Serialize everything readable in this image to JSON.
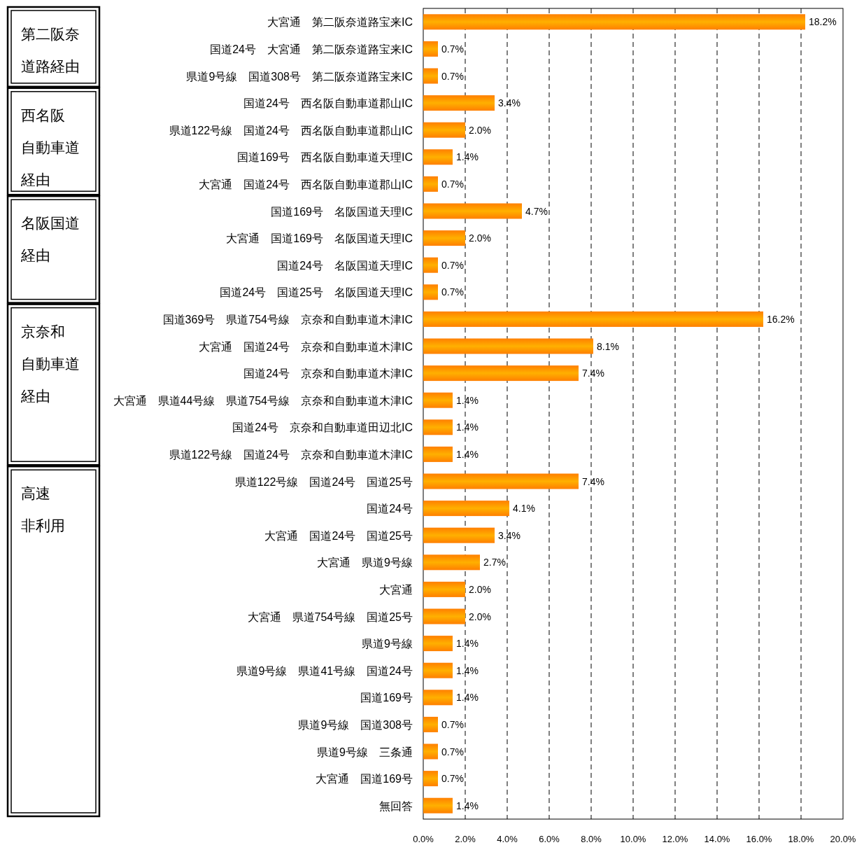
{
  "chart_data": {
    "type": "bar",
    "orientation": "horizontal",
    "color": "#ff7f00",
    "grid": "x",
    "categories": [
      "大宮通　第二阪奈道路宝来IC",
      "国道24号　大宮通　第二阪奈道路宝来IC",
      "県道9号線　国道308号　第二阪奈道路宝来IC",
      "国道24号　西名阪自動車道郡山IC",
      "県道122号線　国道24号　西名阪自動車道郡山IC",
      "国道169号　西名阪自動車道天理IC",
      "大宮通　国道24号　西名阪自動車道郡山IC",
      "国道169号　名阪国道天理IC",
      "大宮通　国道169号　名阪国道天理IC",
      "国道24号　名阪国道天理IC",
      "国道24号　国道25号　名阪国道天理IC",
      "国道369号　県道754号線　京奈和自動車道木津IC",
      "大宮通　国道24号　京奈和自動車道木津IC",
      "国道24号　京奈和自動車道木津IC",
      "大宮通　県道44号線　県道754号線　京奈和自動車道木津IC",
      "国道24号　京奈和自動車道田辺北IC",
      "県道122号線　国道24号　京奈和自動車道木津IC",
      "県道122号線　国道24号　国道25号",
      "国道24号",
      "大宮通　国道24号　国道25号",
      "大宮通　県道9号線",
      "大宮通",
      "大宮通　県道754号線　国道25号",
      "県道9号線",
      "県道9号線　県道41号線　国道24号",
      "国道169号",
      "県道9号線　国道308号",
      "県道9号線　三条通",
      "大宮通　国道169号",
      "無回答"
    ],
    "values": [
      18.2,
      0.7,
      0.7,
      3.4,
      2.0,
      1.4,
      0.7,
      4.7,
      2.0,
      0.7,
      0.7,
      16.2,
      8.1,
      7.4,
      1.4,
      1.4,
      1.4,
      7.4,
      4.1,
      3.4,
      2.7,
      2.0,
      2.0,
      1.4,
      1.4,
      1.4,
      0.7,
      0.7,
      0.7,
      1.4
    ],
    "value_labels": [
      "18.2%",
      "0.7%",
      "0.7%",
      "3.4%",
      "2.0%",
      "1.4%",
      "0.7%",
      "4.7%",
      "2.0%",
      "0.7%",
      "0.7%",
      "16.2%",
      "8.1%",
      "7.4%",
      "1.4%",
      "1.4%",
      "1.4%",
      "7.4%",
      "4.1%",
      "3.4%",
      "2.7%",
      "2.0%",
      "2.0%",
      "1.4%",
      "1.4%",
      "1.4%",
      "0.7%",
      "0.7%",
      "0.7%",
      "1.4%"
    ],
    "xlim": [
      0,
      20
    ],
    "xticks": [
      {
        "value": 0,
        "label": "0.0%"
      },
      {
        "value": 2,
        "label": "2.0%"
      },
      {
        "value": 4,
        "label": "4.0%"
      },
      {
        "value": 6,
        "label": "6.0%"
      },
      {
        "value": 8,
        "label": "8.0%"
      },
      {
        "value": 10,
        "label": "10.0%"
      },
      {
        "value": 12,
        "label": "12.0%"
      },
      {
        "value": 14,
        "label": "14.0%"
      },
      {
        "value": 16,
        "label": "16.0%"
      },
      {
        "value": 18,
        "label": "18.0%"
      },
      {
        "value": 20,
        "label": "20.0%"
      }
    ],
    "annotations": [
      "第二阪奈道路経由",
      "西名阪自動車道経由",
      "名阪国道経由",
      "京奈和自動車道経由",
      "高速非利用"
    ]
  }
}
